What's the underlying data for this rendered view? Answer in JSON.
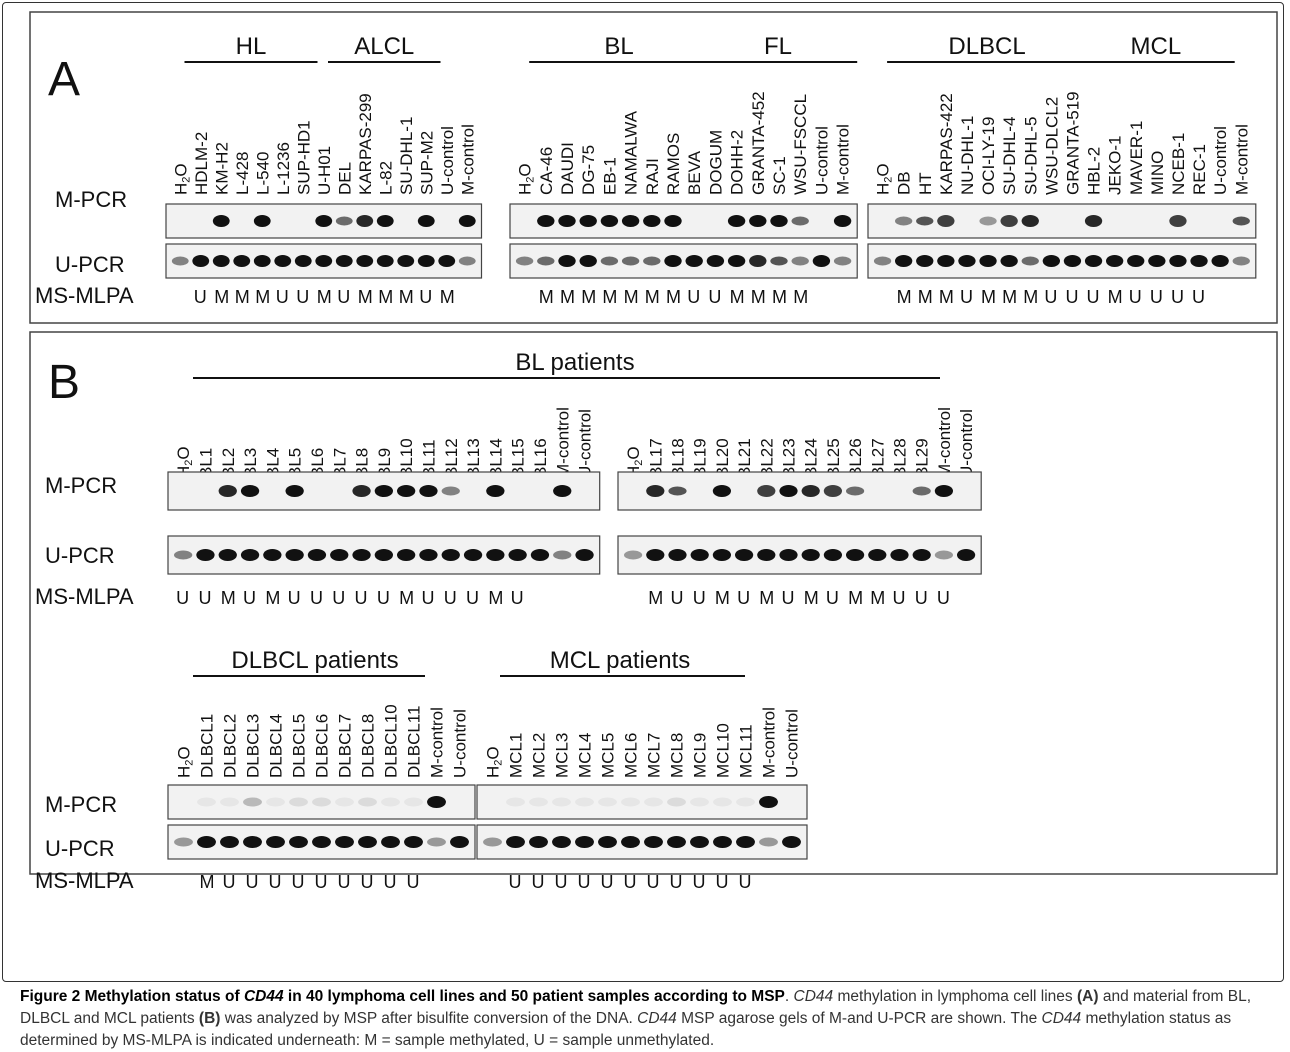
{
  "panelA": {
    "letter": "A",
    "row_labels": [
      "M-PCR",
      "U-PCR",
      "MS-MLPA"
    ],
    "gels": [
      {
        "groups": [
          {
            "name": "HL",
            "from": 1,
            "to": 6
          },
          {
            "name": "ALCL",
            "from": 8,
            "to": 12
          }
        ],
        "lanes": [
          "H2O",
          "HDLM-2",
          "KM-H2",
          "L-428",
          "L-540",
          "L-1236",
          "SUP-HD1",
          "U-H01",
          "DEL",
          "KARPAS-299",
          "L-82",
          "SU-DHL-1",
          "SUP-M2",
          "U-control",
          "M-control"
        ],
        "mpcr": [
          0,
          0,
          1,
          0,
          1,
          0,
          0,
          1,
          0.6,
          0.9,
          1,
          0,
          1,
          0,
          1
        ],
        "upcr": [
          0.5,
          1,
          1,
          1,
          1,
          1,
          1,
          1,
          1,
          1,
          1,
          1,
          1,
          1,
          0.5
        ],
        "msmlpa": [
          "",
          "U",
          "M",
          "M",
          "M",
          "U",
          "U",
          "M",
          "U",
          "M",
          "M",
          "M",
          "U",
          "M",
          ""
        ]
      },
      {
        "groups": [
          {
            "name": "BL",
            "from": 1,
            "to": 8
          },
          {
            "name": "FL",
            "from": 9,
            "to": 15
          }
        ],
        "lanes": [
          "H2O",
          "CA-46",
          "DAUDI",
          "DG-75",
          "EB-1",
          "NAMALWA",
          "RAJI",
          "RAMOS",
          "BEVA",
          "DOGUM",
          "DOHH-2",
          "GRANTA-452",
          "SC-1",
          "WSU-FSCCL",
          "U-control",
          "M-control"
        ],
        "mpcr": [
          0,
          1,
          1,
          1,
          1,
          1,
          1,
          1,
          0,
          0,
          1,
          1,
          1,
          0.6,
          0,
          1
        ],
        "upcr": [
          0.5,
          0.6,
          1,
          1,
          0.6,
          0.6,
          0.6,
          1,
          1,
          1,
          1,
          0.9,
          0.7,
          0.5,
          1,
          0.5
        ],
        "msmlpa": [
          "",
          "M",
          "M",
          "M",
          "M",
          "M",
          "M",
          "M",
          "U",
          "U",
          "M",
          "M",
          "M",
          "M",
          "",
          ""
        ]
      },
      {
        "groups": [
          {
            "name": "DLBCL",
            "from": 1,
            "to": 9
          },
          {
            "name": "MCL",
            "from": 10,
            "to": 16
          }
        ],
        "lanes": [
          "H2O",
          "DB",
          "HT",
          "KARPAS-422",
          "NU-DHL-1",
          "OCI-LY-19",
          "SU-DHL-4",
          "SU-DHL-5",
          "WSU-DLCL2",
          "GRANTA-519",
          "HBL-2",
          "JEKO-1",
          "MAVER-1",
          "MINO",
          "NCEB-1",
          "REC-1",
          "U-control",
          "M-control"
        ],
        "mpcr": [
          0,
          0.5,
          0.7,
          0.8,
          0,
          0.4,
          0.8,
          0.9,
          0,
          0,
          0.9,
          0,
          0,
          0,
          0.8,
          0,
          0,
          0.7
        ],
        "upcr": [
          0.5,
          1,
          1,
          1,
          1,
          1,
          1,
          0.6,
          1,
          1,
          1,
          1,
          1,
          1,
          1,
          1,
          1,
          0.5
        ],
        "msmlpa": [
          "",
          "M",
          "M",
          "M",
          "U",
          "M",
          "M",
          "M",
          "U",
          "U",
          "U",
          "M",
          "U",
          "U",
          "U",
          "U",
          "",
          ""
        ]
      }
    ]
  },
  "panelB": {
    "letter": "B",
    "row_labels": [
      "M-PCR",
      "U-PCR",
      "MS-MLPA"
    ],
    "header_bl": "BL patients",
    "header_dlbcl": "DLBCL patients",
    "header_mcl": "MCL patients",
    "gels": [
      {
        "lanes": [
          "H2O",
          "BL1",
          "BL2",
          "BL3",
          "BL4",
          "BL5",
          "BL6",
          "BL7",
          "BL8",
          "BL9",
          "BL10",
          "BL11",
          "BL12",
          "BL13",
          "BL14",
          "BL15",
          "BL16",
          "M-control",
          "U-control"
        ],
        "mpcr": [
          0,
          0,
          0.9,
          1,
          0,
          1,
          0,
          0,
          0.9,
          1,
          1,
          1,
          0.5,
          0,
          1,
          0,
          0,
          1,
          0
        ],
        "upcr": [
          0.5,
          1,
          1,
          1,
          1,
          1,
          1,
          1,
          1,
          1,
          1,
          1,
          1,
          1,
          1,
          1,
          1,
          0.5,
          1
        ],
        "msmlpa": [
          "U",
          "U",
          "M",
          "U",
          "M",
          "U",
          "U",
          "U",
          "U",
          "U",
          "M",
          "U",
          "U",
          "U",
          "M",
          "U",
          "",
          "",
          ""
        ]
      },
      {
        "lanes": [
          "H2O",
          "BL17",
          "BL18",
          "BL19",
          "BL20",
          "BL21",
          "BL22",
          "BL23",
          "BL24",
          "BL25",
          "BL26",
          "BL27",
          "BL28",
          "BL29",
          "M-control",
          "U-control"
        ],
        "mpcr": [
          0,
          0.9,
          0.7,
          0,
          1,
          0,
          0.8,
          1,
          0.9,
          0.8,
          0.6,
          0,
          0,
          0.6,
          1,
          0
        ],
        "upcr": [
          0.4,
          1,
          1,
          1,
          1,
          1,
          1,
          1,
          1,
          1,
          1,
          1,
          1,
          1,
          0.4,
          1
        ],
        "msmlpa": [
          "",
          "M",
          "U",
          "U",
          "M",
          "U",
          "M",
          "U",
          "M",
          "U",
          "M",
          "M",
          "U",
          "U",
          "U",
          ""
        ]
      },
      {
        "lanes": [
          "H2O",
          "DLBCL1",
          "DLBCL2",
          "DLBCL3",
          "DLBCL4",
          "DLBCL5",
          "DLBCL6",
          "DLBCL7",
          "DLBCL8",
          "DLBCL10",
          "DLBCL11",
          "M-control",
          "U-control"
        ],
        "mpcr": [
          0,
          0.05,
          0.05,
          0.25,
          0.05,
          0.1,
          0.1,
          0.05,
          0.1,
          0.05,
          0.05,
          1,
          0
        ],
        "upcr": [
          0.4,
          1,
          1,
          1,
          1,
          1,
          1,
          1,
          1,
          1,
          1,
          0.4,
          1
        ],
        "msmlpa": [
          "",
          "M",
          "U",
          "U",
          "U",
          "U",
          "U",
          "U",
          "U",
          "U",
          "U",
          "",
          ""
        ]
      },
      {
        "lanes": [
          "H2O",
          "MCL1",
          "MCL2",
          "MCL3",
          "MCL4",
          "MCL5",
          "MCL6",
          "MCL7",
          "MCL8",
          "MCL9",
          "MCL10",
          "MCL11",
          "M-control",
          "U-control"
        ],
        "mpcr": [
          0,
          0.05,
          0.05,
          0.05,
          0.05,
          0.05,
          0.05,
          0.05,
          0.1,
          0.05,
          0.05,
          0.05,
          1,
          0
        ],
        "upcr": [
          0.4,
          1,
          1,
          1,
          1,
          1,
          1,
          1,
          1,
          1,
          1,
          1,
          0.4,
          1
        ],
        "msmlpa": [
          "",
          "U",
          "U",
          "U",
          "U",
          "U",
          "U",
          "U",
          "U",
          "U",
          "U",
          "U",
          "",
          ""
        ]
      }
    ]
  },
  "caption": {
    "label": "Figure 2",
    "title_a": "Methylation status of ",
    "title_gene": "CD44",
    "title_b": " in 40 lymphoma cell lines and 50 patient samples according to MSP",
    "t1": "CD44",
    "t2": " methylation in lymphoma cell lines ",
    "t3": "(A)",
    "t4": " and material from BL, DLBCL and MCL patients ",
    "t5": "(B)",
    "t6": " was analyzed by MSP after bisulfite conversion of the DNA. ",
    "t7": "CD44",
    "t8": " MSP agarose gels of M-and U-PCR are shown. The ",
    "t9": "CD44",
    "t10": " methylation status as determined by MS-MLPA is indicated underneath: M = sample methylated, U = sample unmethylated."
  }
}
